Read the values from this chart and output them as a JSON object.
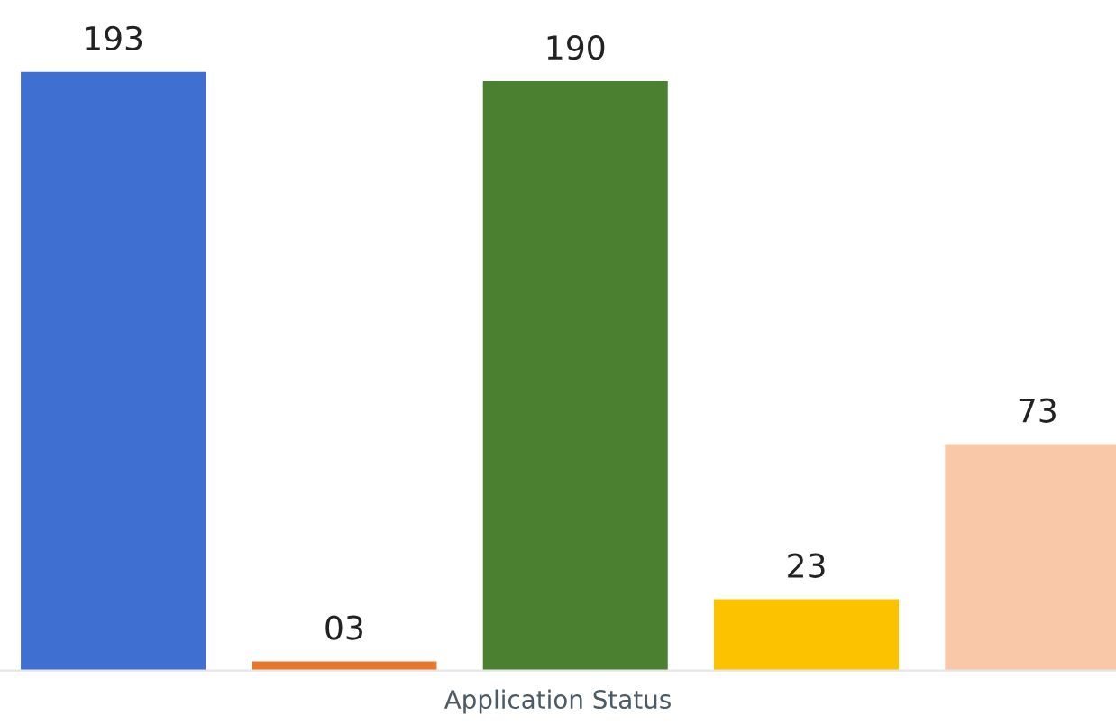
{
  "chart_data": {
    "type": "bar",
    "xlabel": "Application Status",
    "categories": [
      null,
      null,
      null,
      null,
      null
    ],
    "values": [
      193,
      3,
      190,
      23,
      73
    ],
    "colors": [
      "#3f6fd0",
      "#e8772e",
      "#4a8030",
      "#fcc200",
      "#f8c8a8"
    ],
    "value_labels": [
      "193",
      "03",
      "190",
      "23",
      "73"
    ]
  }
}
